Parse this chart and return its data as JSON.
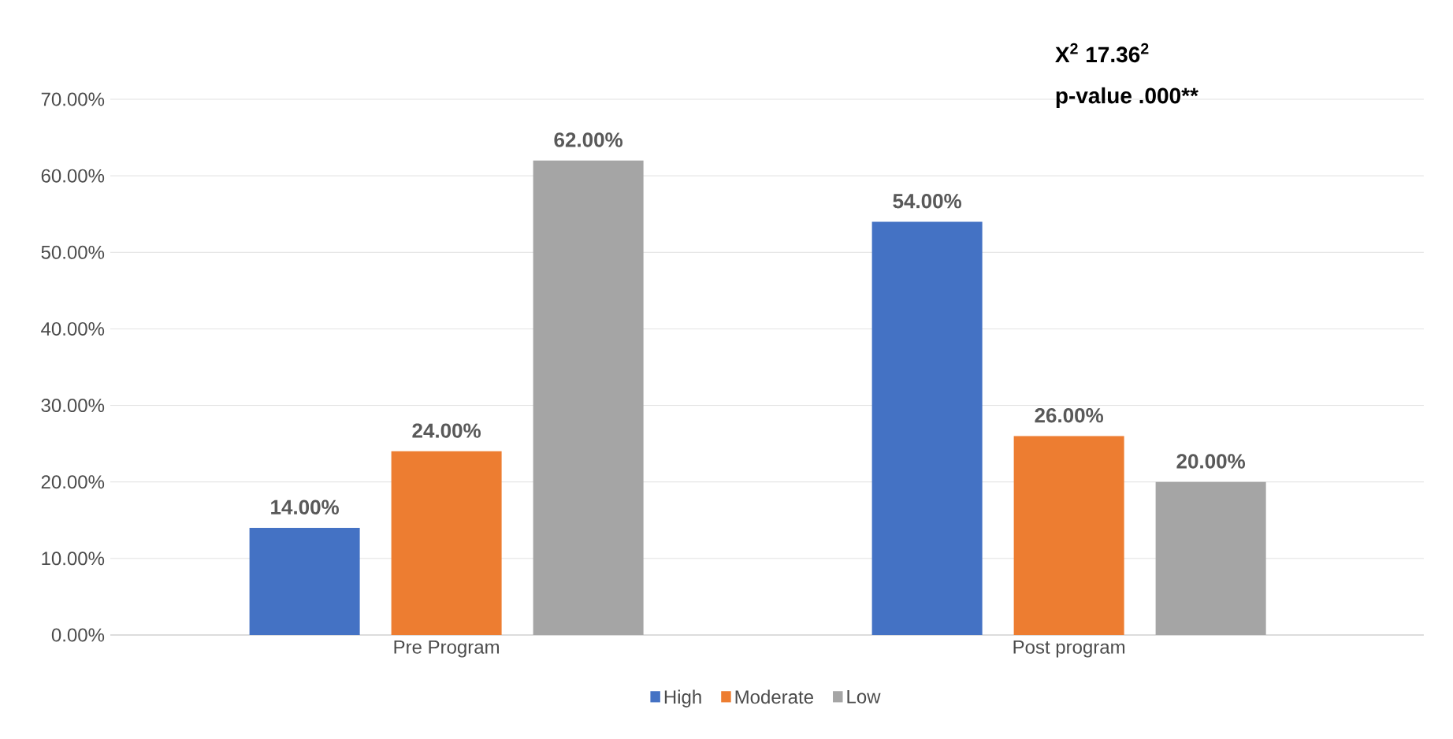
{
  "chart_data": {
    "type": "bar",
    "categories": [
      "Pre Program",
      "Post program"
    ],
    "series": [
      {
        "name": "High",
        "color": "#4472c4",
        "values": [
          14,
          54
        ],
        "value_labels": [
          "14.00%",
          "54.00%"
        ]
      },
      {
        "name": "Moderate",
        "color": "#ed7d31",
        "values": [
          24,
          26
        ],
        "value_labels": [
          "24.00%",
          "26.00%"
        ]
      },
      {
        "name": "Low",
        "color": "#a5a5a5",
        "values": [
          62,
          20
        ],
        "value_labels": [
          "62.00%",
          "20.00%"
        ]
      }
    ],
    "ylim": [
      0,
      70
    ],
    "yticks": [
      {
        "value": 0,
        "label": "0.00%"
      },
      {
        "value": 10,
        "label": "10.00%"
      },
      {
        "value": 20,
        "label": "20.00%"
      },
      {
        "value": 30,
        "label": "30.00%"
      },
      {
        "value": 40,
        "label": "40.00%"
      },
      {
        "value": 50,
        "label": "50.00%"
      },
      {
        "value": 60,
        "label": "60.00%"
      },
      {
        "value": 70,
        "label": "70.00%"
      }
    ],
    "grid": "y",
    "legend": "bottom",
    "annotations": [
      "X$^{2}$ 17.36$^{2}$",
      "p-value .000**"
    ]
  }
}
